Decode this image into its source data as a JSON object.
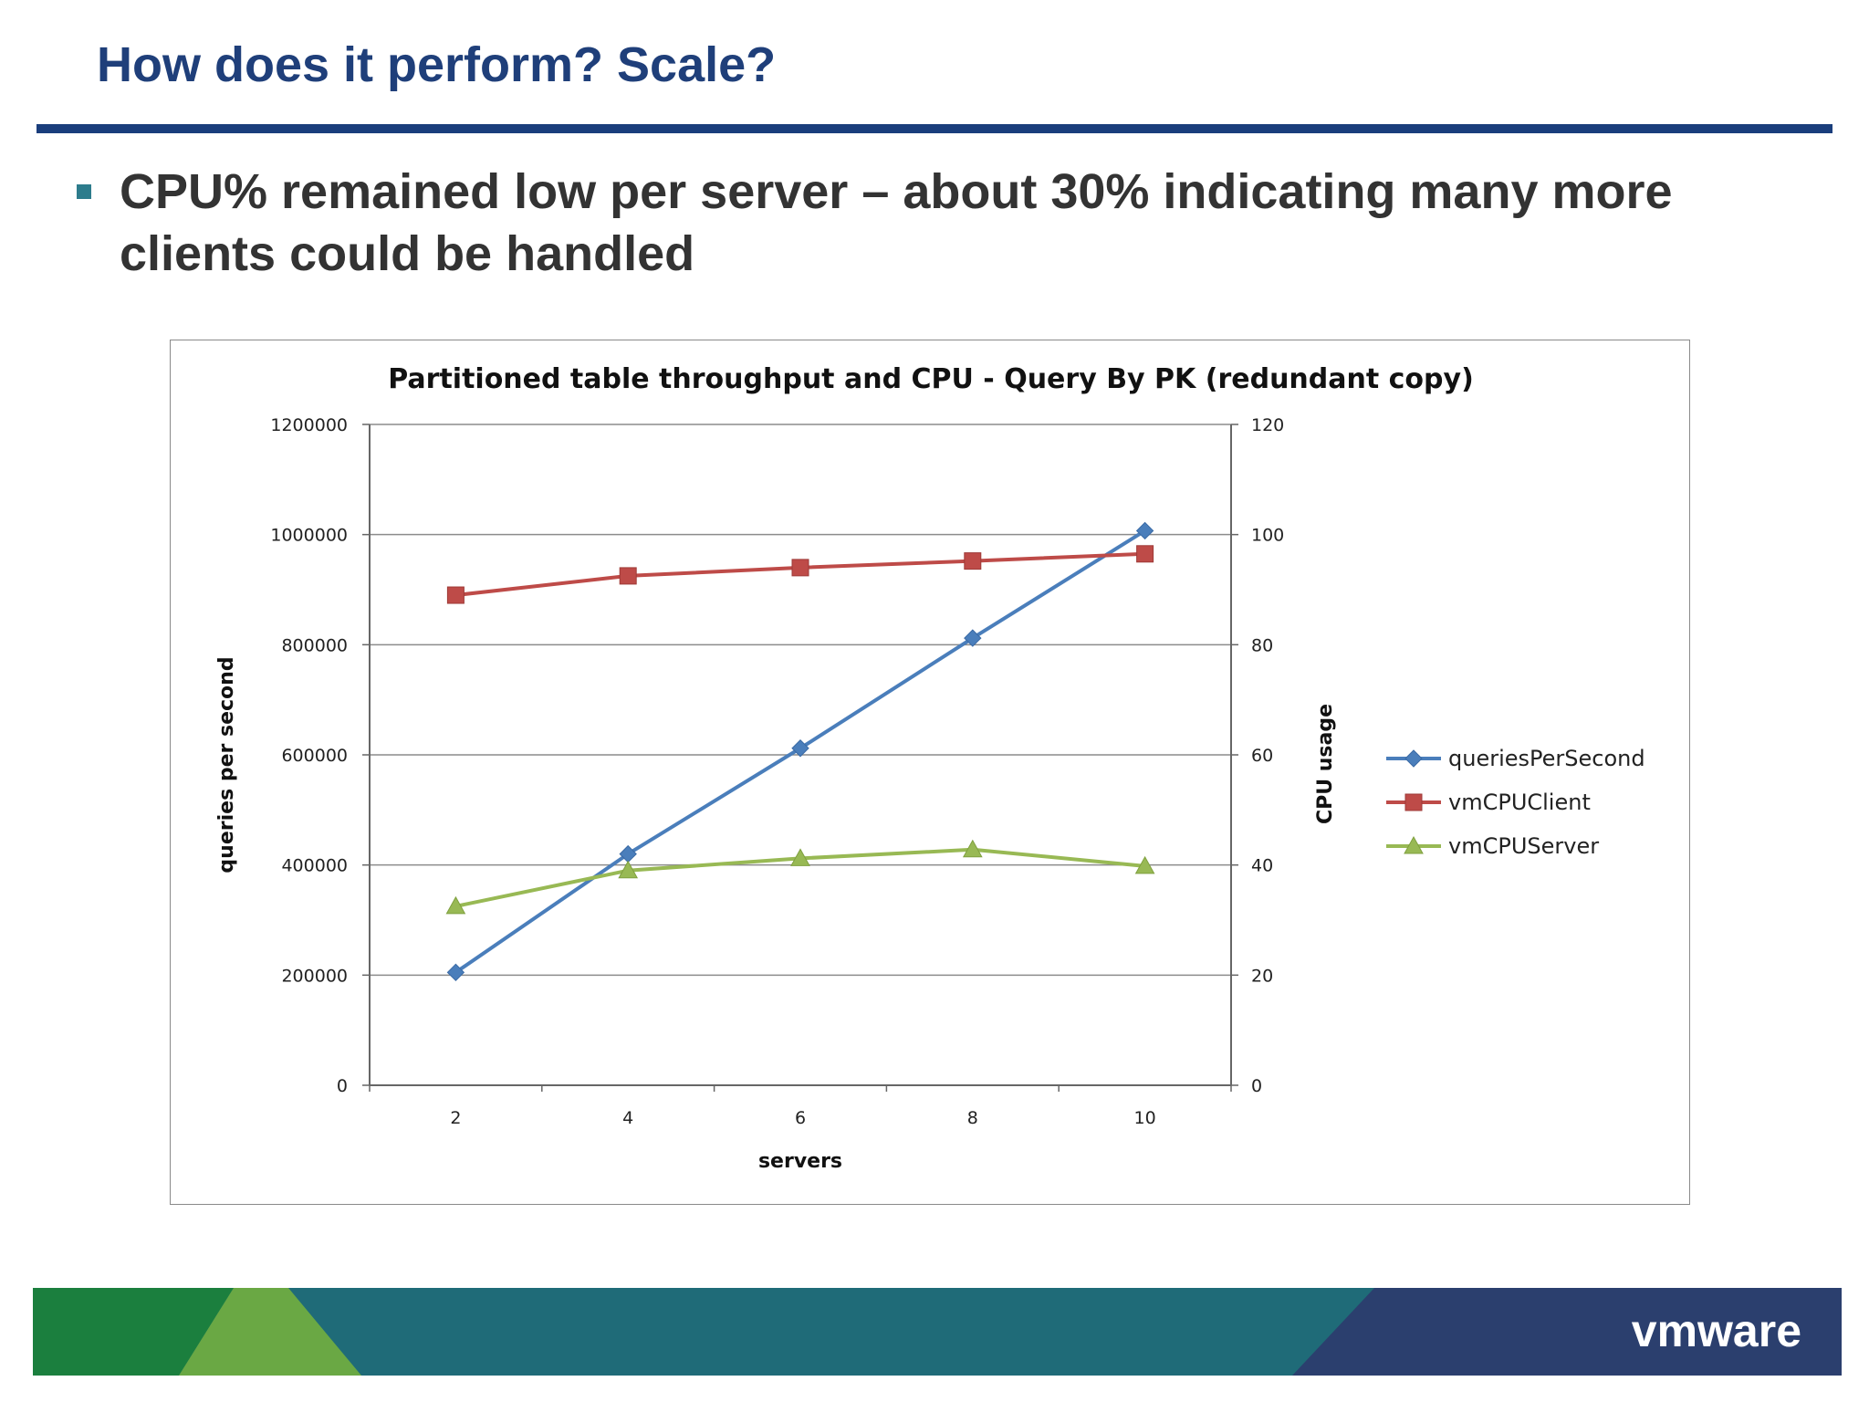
{
  "slide": {
    "title": "How does it perform? Scale?",
    "bullet": "CPU% remained low per server – about 30% indicating many more clients could be handled"
  },
  "colors": {
    "title": "#1f3f7a",
    "rule": "#1a3e7c",
    "bullet_marker": "#2d7c8c",
    "series_queries": "#4a7ebb",
    "series_client": "#be4b48",
    "series_server": "#98b954",
    "footer_green_dark": "#1b7f3e",
    "footer_green_light": "#6aa844",
    "footer_teal": "#1f6b78",
    "footer_navy": "#2b3f6e"
  },
  "chart_data": {
    "type": "line",
    "title": "Partitioned table throughput and CPU - Query By PK (redundant copy)",
    "xlabel": "servers",
    "ylabel": "queries per second",
    "y2label": "CPU usage",
    "categories": [
      "2",
      "4",
      "6",
      "8",
      "10"
    ],
    "ylim": [
      0,
      1200000
    ],
    "y2lim": [
      0,
      120
    ],
    "yticks": [
      "0",
      "200000",
      "400000",
      "600000",
      "800000",
      "1000000",
      "1200000"
    ],
    "y2ticks": [
      "0",
      "20",
      "40",
      "60",
      "80",
      "100",
      "120"
    ],
    "grid": true,
    "legend_position": "right",
    "series": [
      {
        "name": "queriesPerSecond",
        "axis": "left",
        "marker": "diamond",
        "color": "#4a7ebb",
        "values": [
          205000,
          420000,
          612000,
          812000,
          1007000
        ]
      },
      {
        "name": "vmCPUClient",
        "axis": "right",
        "marker": "square",
        "color": "#be4b48",
        "values": [
          89,
          92.5,
          94,
          95.2,
          96.5
        ]
      },
      {
        "name": "vmCPUServer",
        "axis": "right",
        "marker": "triangle",
        "color": "#98b954",
        "values": [
          32.5,
          39,
          41.2,
          42.8,
          39.8
        ]
      }
    ]
  },
  "footer": {
    "logo_text": "vmware"
  }
}
